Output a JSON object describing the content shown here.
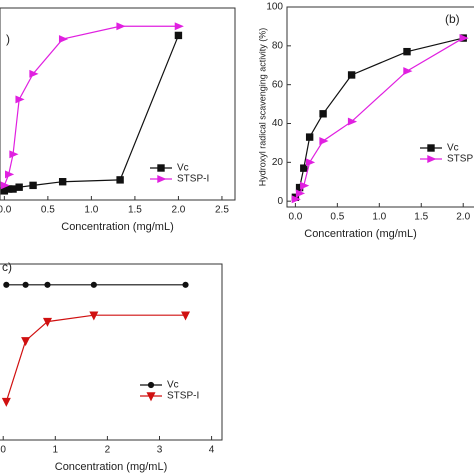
{
  "chart_data": [
    {
      "type": "line",
      "label": ")",
      "xlabel": "Concentration (mg/mL)",
      "xlim": [
        -0.05,
        2.65
      ],
      "xticks": [
        0.0,
        0.5,
        1.0,
        1.5,
        2.0,
        2.5
      ],
      "ylim": [
        -5,
        100
      ],
      "series": [
        {
          "name": "Vc",
          "color": "#111111",
          "marker": "square",
          "x": [
            0,
            0.05,
            0.1,
            0.17,
            0.33,
            0.67,
            1.33,
            2.0
          ],
          "values": [
            0,
            1,
            1,
            2,
            3,
            5,
            6,
            85
          ]
        },
        {
          "name": "STSP-I",
          "color": "#e020e0",
          "marker": "triangle-right",
          "x": [
            0,
            0.05,
            0.1,
            0.17,
            0.33,
            0.67,
            1.33,
            2.0
          ],
          "values": [
            3,
            9,
            20,
            50,
            64,
            83,
            90,
            90
          ]
        }
      ]
    },
    {
      "type": "line",
      "label": "(b)",
      "xlabel": "Concentration (mg/mL)",
      "ylabel": "Hydroxyl radical scavenging activity (%)",
      "xlim": [
        -0.1,
        2.2
      ],
      "xticks": [
        0.0,
        0.5,
        1.0,
        1.5,
        2.0
      ],
      "ylim": [
        -3,
        100
      ],
      "yticks": [
        0,
        20,
        40,
        60,
        80,
        100
      ],
      "series": [
        {
          "name": "Vc",
          "color": "#111111",
          "marker": "square",
          "x": [
            0,
            0.05,
            0.1,
            0.17,
            0.33,
            0.67,
            1.33,
            2.0
          ],
          "values": [
            2,
            7,
            17,
            33,
            45,
            65,
            77,
            84
          ]
        },
        {
          "name": "STSP",
          "color": "#e020e0",
          "marker": "triangle-right",
          "x": [
            0,
            0.05,
            0.1,
            0.17,
            0.33,
            0.67,
            1.33,
            2.0
          ],
          "values": [
            1,
            4,
            8,
            20,
            31,
            41,
            67,
            84
          ]
        }
      ]
    },
    {
      "type": "line",
      "label": "c)",
      "xlabel": "Concentration (mg/mL)",
      "xlim": [
        -0.1,
        4.2
      ],
      "xticks": [
        0,
        1,
        2,
        3,
        4
      ],
      "ylim": [
        0,
        110
      ],
      "series": [
        {
          "name": "Vc",
          "color": "#111111",
          "marker": "circle",
          "x": [
            0.06,
            0.43,
            0.85,
            1.74,
            3.5
          ],
          "values": [
            97,
            97,
            97,
            97,
            97
          ]
        },
        {
          "name": "STSP-I",
          "color": "#d01010",
          "marker": "triangle-down",
          "x": [
            0.06,
            0.43,
            0.85,
            1.74,
            3.5
          ],
          "values": [
            24,
            62,
            74,
            78,
            78
          ]
        }
      ]
    }
  ]
}
